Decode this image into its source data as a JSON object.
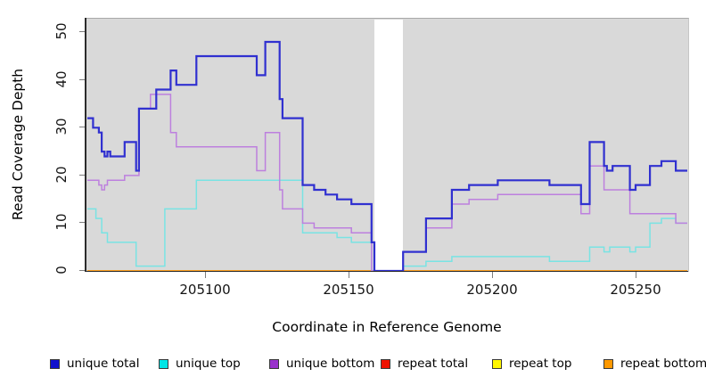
{
  "figure": {
    "ylabel": "Read Coverage Depth",
    "xlabel": "Coordinate in Reference Genome"
  },
  "chart_data": {
    "type": "line",
    "subtype": "step",
    "title": "",
    "xlabel": "Coordinate in Reference Genome",
    "ylabel": "Read Coverage Depth",
    "xlim": [
      205059,
      205268
    ],
    "ylim": [
      0,
      53
    ],
    "x_ticks": [
      205100,
      205150,
      205200,
      205250
    ],
    "y_ticks": [
      0,
      10,
      20,
      30,
      40,
      50
    ],
    "grid": false,
    "plot_background": "#d9d9d9",
    "gap_band": {
      "from": 205159,
      "to": 205169,
      "color": "#ffffff"
    },
    "x_end": 205268,
    "series": [
      {
        "name": "repeat total",
        "color": "#dd0000",
        "width": 1.5,
        "points": [
          [
            205059,
            0
          ]
        ]
      },
      {
        "name": "repeat top",
        "color": "#ffff00",
        "width": 1.5,
        "points": [
          [
            205059,
            0
          ]
        ]
      },
      {
        "name": "repeat bottom",
        "color": "#ff9d1f",
        "width": 1.8,
        "points": [
          [
            205059,
            0
          ]
        ]
      },
      {
        "name": "unique top",
        "color": "#79e3e3",
        "width": 1.5,
        "points": [
          [
            205059,
            13
          ],
          [
            205062,
            11
          ],
          [
            205064,
            8
          ],
          [
            205066,
            6
          ],
          [
            205076,
            1
          ],
          [
            205086,
            13
          ],
          [
            205097,
            19
          ],
          [
            205134,
            8
          ],
          [
            205146,
            7
          ],
          [
            205151,
            6
          ],
          [
            205158,
            0
          ],
          [
            205169,
            1
          ],
          [
            205177,
            2
          ],
          [
            205186,
            3
          ],
          [
            205220,
            2
          ],
          [
            205234,
            5
          ],
          [
            205239,
            4
          ],
          [
            205241,
            5
          ],
          [
            205248,
            4
          ],
          [
            205250,
            5
          ],
          [
            205255,
            10
          ],
          [
            205259,
            11
          ],
          [
            205264,
            10
          ]
        ]
      },
      {
        "name": "unique bottom",
        "color": "#bd80de",
        "width": 1.5,
        "points": [
          [
            205059,
            19
          ],
          [
            205063,
            18
          ],
          [
            205064,
            17
          ],
          [
            205065,
            18
          ],
          [
            205066,
            19
          ],
          [
            205072,
            20
          ],
          [
            205077,
            34
          ],
          [
            205081,
            37
          ],
          [
            205088,
            29
          ],
          [
            205090,
            26
          ],
          [
            205118,
            21
          ],
          [
            205121,
            29
          ],
          [
            205126,
            17
          ],
          [
            205127,
            13
          ],
          [
            205134,
            10
          ],
          [
            205138,
            9
          ],
          [
            205151,
            8
          ],
          [
            205158,
            0
          ],
          [
            205169,
            4
          ],
          [
            205177,
            9
          ],
          [
            205186,
            14
          ],
          [
            205192,
            15
          ],
          [
            205202,
            16
          ],
          [
            205231,
            12
          ],
          [
            205234,
            22
          ],
          [
            205239,
            17
          ],
          [
            205248,
            12
          ],
          [
            205264,
            10
          ]
        ]
      },
      {
        "name": "unique total",
        "color": "#3030d0",
        "width": 2.2,
        "points": [
          [
            205059,
            32
          ],
          [
            205061,
            30
          ],
          [
            205063,
            29
          ],
          [
            205064,
            25
          ],
          [
            205065,
            24
          ],
          [
            205066,
            25
          ],
          [
            205067,
            24
          ],
          [
            205072,
            27
          ],
          [
            205076,
            21
          ],
          [
            205077,
            34
          ],
          [
            205083,
            38
          ],
          [
            205088,
            42
          ],
          [
            205090,
            39
          ],
          [
            205097,
            45
          ],
          [
            205118,
            41
          ],
          [
            205121,
            48
          ],
          [
            205126,
            36
          ],
          [
            205127,
            32
          ],
          [
            205134,
            18
          ],
          [
            205138,
            17
          ],
          [
            205142,
            16
          ],
          [
            205146,
            15
          ],
          [
            205151,
            14
          ],
          [
            205158,
            6
          ],
          [
            205159,
            0
          ],
          [
            205169,
            4
          ],
          [
            205177,
            11
          ],
          [
            205186,
            17
          ],
          [
            205192,
            18
          ],
          [
            205202,
            19
          ],
          [
            205220,
            18
          ],
          [
            205231,
            14
          ],
          [
            205234,
            27
          ],
          [
            205239,
            22
          ],
          [
            205240,
            21
          ],
          [
            205242,
            22
          ],
          [
            205248,
            17
          ],
          [
            205250,
            18
          ],
          [
            205255,
            22
          ],
          [
            205259,
            23
          ],
          [
            205264,
            21
          ]
        ]
      }
    ],
    "legend": {
      "position": "bottom",
      "entries": [
        {
          "label": "unique total",
          "color": "#1212cd"
        },
        {
          "label": "unique top",
          "color": "#00e5e5"
        },
        {
          "label": "unique bottom",
          "color": "#9932cc"
        },
        {
          "label": "repeat total",
          "color": "#ee1100"
        },
        {
          "label": "repeat top",
          "color": "#fff700"
        },
        {
          "label": "repeat bottom",
          "color": "#ff9900"
        }
      ],
      "item_x": [
        56,
        178,
        302,
        427,
        552,
        677
      ]
    }
  }
}
